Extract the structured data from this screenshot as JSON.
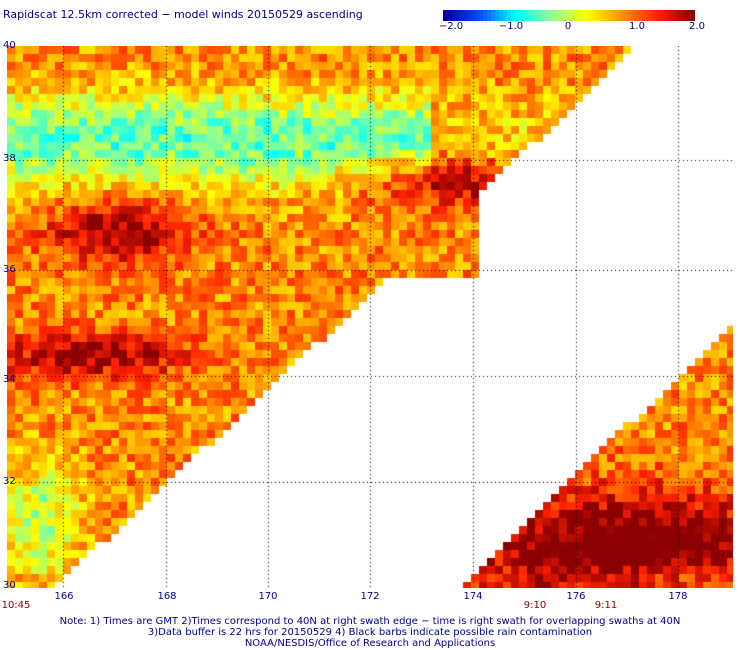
{
  "title": "Rapidscat 12.5km corrected − model winds 20150529 ascending",
  "colorbar": {
    "ticks": [
      "−2.0",
      "−1.0",
      "0",
      "1.0",
      "2.0"
    ],
    "range": [
      -2.0,
      2.0
    ],
    "colors": [
      "#0000a0",
      "#0050ff",
      "#00ffff",
      "#90ff90",
      "#ffff00",
      "#ff9000",
      "#ff2000",
      "#8b0000"
    ]
  },
  "map": {
    "lat_labels": [
      "40",
      "38",
      "36",
      "34",
      "32",
      "30"
    ],
    "lon_labels": [
      "166",
      "168",
      "170",
      "172",
      "174",
      "176",
      "178"
    ],
    "time_labels": [
      "10:45",
      "9:10",
      "9:11"
    ],
    "grid_color": "#000000",
    "no_data_color": "#ffffff"
  },
  "notes": [
    "Note: 1) Times are GMT 2)Times correspond to 40N at right swath edge − time is right swath for overlapping swaths at 40N",
    "3)Data buffer is 22 hrs for 20150529 4) Black barbs indicate possible rain contamination",
    "NOAA/NESDIS/Office of Research and Applications"
  ]
}
